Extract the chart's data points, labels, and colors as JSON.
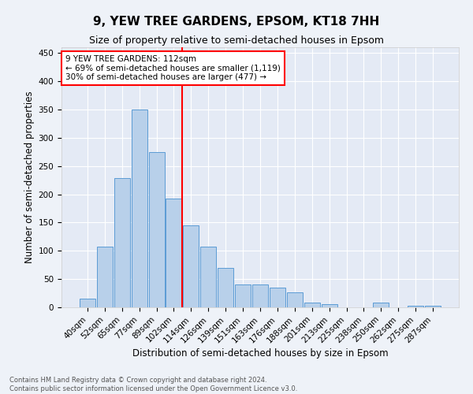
{
  "title": "9, YEW TREE GARDENS, EPSOM, KT18 7HH",
  "subtitle": "Size of property relative to semi-detached houses in Epsom",
  "xlabel": "Distribution of semi-detached houses by size in Epsom",
  "ylabel": "Number of semi-detached properties",
  "footnote1": "Contains HM Land Registry data © Crown copyright and database right 2024.",
  "footnote2": "Contains public sector information licensed under the Open Government Licence v3.0.",
  "annotation_line1": "9 YEW TREE GARDENS: 112sqm",
  "annotation_line2": "← 69% of semi-detached houses are smaller (1,119)",
  "annotation_line3": "30% of semi-detached houses are larger (477) →",
  "bar_labels": [
    "40sqm",
    "52sqm",
    "65sqm",
    "77sqm",
    "89sqm",
    "102sqm",
    "114sqm",
    "126sqm",
    "139sqm",
    "151sqm",
    "163sqm",
    "176sqm",
    "188sqm",
    "201sqm",
    "213sqm",
    "225sqm",
    "238sqm",
    "250sqm",
    "262sqm",
    "275sqm",
    "287sqm"
  ],
  "bar_values": [
    15,
    108,
    228,
    350,
    275,
    192,
    145,
    108,
    70,
    40,
    40,
    35,
    26,
    8,
    5,
    0,
    0,
    8,
    0,
    3,
    3
  ],
  "bar_color": "#b8d0ea",
  "bar_edge_color": "#5b9bd5",
  "vline_index": 6,
  "vline_color": "red",
  "ylim": [
    0,
    460
  ],
  "yticks": [
    0,
    50,
    100,
    150,
    200,
    250,
    300,
    350,
    400,
    450
  ],
  "background_color": "#eef2f8",
  "plot_bg_color": "#e4eaf5",
  "grid_color": "#ffffff",
  "title_fontsize": 11,
  "subtitle_fontsize": 9,
  "axis_label_fontsize": 8.5,
  "tick_fontsize": 7.5,
  "annotation_box_color": "#ffffff",
  "annotation_box_edge": "red",
  "annotation_fontsize": 7.5
}
